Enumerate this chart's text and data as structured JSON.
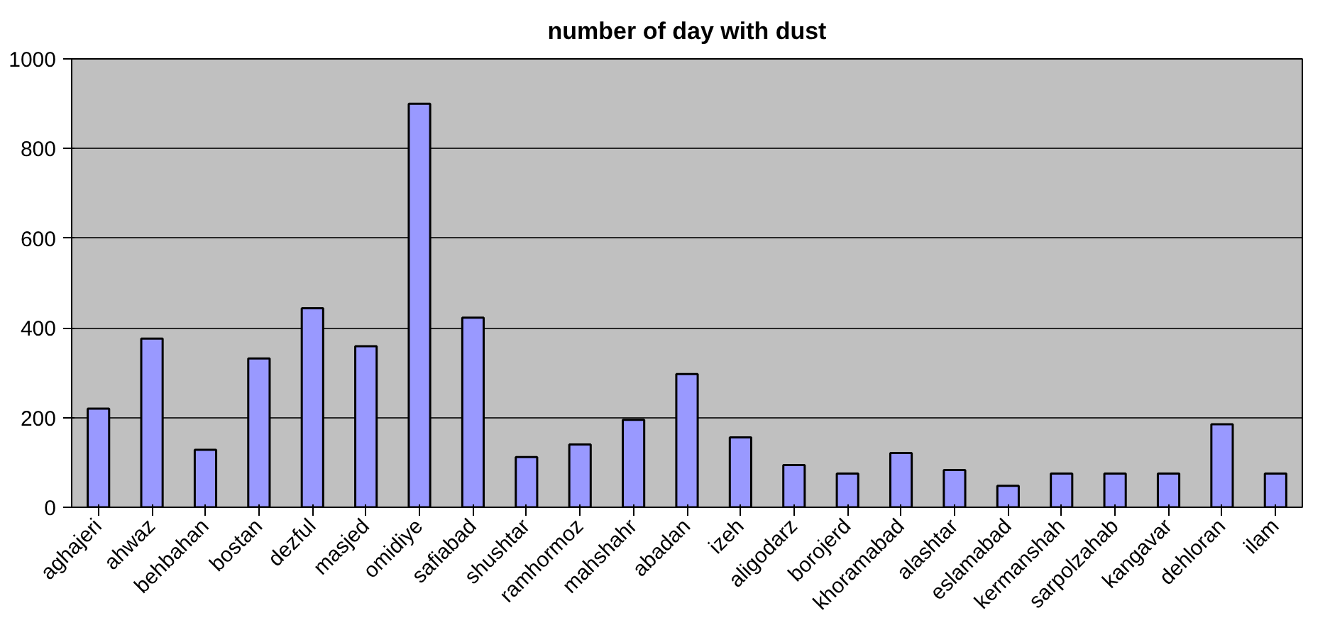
{
  "chart_data": {
    "type": "bar",
    "title": "number of day with dust",
    "categories": [
      "aghajeri",
      "ahwaz",
      "behbahan",
      "bostan",
      "dezful",
      "masjed",
      "omidiye",
      "safiabad",
      "shushtar",
      "ramhormoz",
      "mahshahr",
      "abadan",
      "izeh",
      "aligodarz",
      "borojerd",
      "khoramabad",
      "alashtar",
      "eslamabad",
      "kermanshah",
      "sarpolzahab",
      "kangavar",
      "dehloran",
      "ilam"
    ],
    "values": [
      220,
      376,
      128,
      332,
      444,
      359,
      900,
      423,
      112,
      140,
      195,
      297,
      156,
      94,
      75,
      121,
      83,
      48,
      75,
      75,
      75,
      185,
      75
    ],
    "color": "#9999ff",
    "ylim": [
      0,
      1000
    ],
    "yticks": [
      0,
      200,
      400,
      600,
      800,
      1000
    ],
    "grid": "y"
  }
}
